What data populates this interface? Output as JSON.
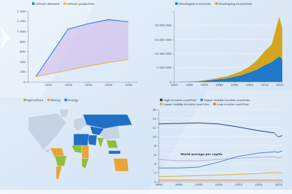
{
  "chart_data": [
    {
      "type": "line",
      "x": [
        2022,
        2030,
        2035,
        2040,
        2045
      ],
      "xlim": [
        2020,
        2047
      ],
      "xticks": [
        2025,
        2030,
        2035,
        2040,
        2045
      ],
      "ylim": [
        0,
        1400
      ],
      "yticks": [
        0,
        200,
        400,
        600,
        800,
        {
          "value": 1000,
          "label": "1 000"
        },
        {
          "value": 1200,
          "label": "1 200"
        },
        {
          "value": 1400,
          "label": "1 400"
        }
      ],
      "legend": "top",
      "grid": false,
      "series": [
        {
          "name": "Lithium demand",
          "color": "#2a7fd4",
          "values": [
            100,
            1040,
            1150,
            1230,
            1190
          ]
        },
        {
          "name": "Lithium production",
          "color": "#e2b93b",
          "values": [
            100,
            230,
            310,
            380,
            440
          ]
        }
      ]
    },
    {
      "type": "area",
      "stacked": true,
      "x": [
        1950,
        1955,
        1960,
        1965,
        1970,
        1975,
        1980,
        1985,
        1990,
        1995,
        2000,
        2005,
        2010,
        2015,
        2020,
        2022
      ],
      "xlim": [
        1950,
        2022
      ],
      "xticks": [
        1950,
        1960,
        1970,
        1980,
        1990,
        2000,
        2010,
        2020
      ],
      "ylim": [
        0,
        25000000
      ],
      "yticks": [
        0,
        {
          "value": 5000000,
          "label": "5 000 000"
        },
        {
          "value": 10000000,
          "label": "10 000 000"
        },
        {
          "value": 15000000,
          "label": "15 000 000"
        },
        {
          "value": 20000000,
          "label": "20 000 000"
        }
      ],
      "legend": "top",
      "grid": true,
      "series": [
        {
          "name": "Developed economies",
          "color": "#1f78c8",
          "values": [
            20000,
            40000,
            80000,
            150000,
            350000,
            600000,
            900000,
            1200000,
            1800000,
            2400000,
            3300000,
            4300000,
            5800000,
            7000000,
            9000000,
            8000000
          ]
        },
        {
          "name": "Developing economies",
          "color": "#d4a51e",
          "values": [
            5000,
            10000,
            30000,
            60000,
            150000,
            300000,
            500000,
            700000,
            1000000,
            1400000,
            2000000,
            3200000,
            4800000,
            6200000,
            14000000,
            11000000
          ]
        }
      ]
    },
    {
      "type": "map",
      "legend": "top",
      "series": [
        {
          "name": "Agriculture",
          "color": "#8fbe3c"
        },
        {
          "name": "Mining",
          "color": "#e8a33a"
        },
        {
          "name": "Energy",
          "color": "#1f6fc4"
        }
      ],
      "regions": [
        "Energy",
        "Energy",
        "Energy",
        "Energy",
        "Agriculture",
        "Mining",
        "Agriculture",
        "Mining",
        "Agriculture",
        "Mining",
        "Agriculture",
        "Agriculture",
        "Mining",
        "Energy"
      ]
    },
    {
      "type": "line",
      "x": [
        1990,
        1995,
        2000,
        2005,
        2010,
        2015,
        2019,
        2020,
        2021
      ],
      "xlim": [
        1990,
        2021
      ],
      "xticks": [
        1990,
        1995,
        2000,
        2005,
        2010,
        2015,
        2020
      ],
      "ylim": [
        0,
        16
      ],
      "yticks": [
        0,
        2,
        4,
        6,
        8,
        10,
        12,
        14,
        16
      ],
      "legend": "top",
      "grid": true,
      "series": [
        {
          "name": "High-income countries",
          "color": "#173f7a",
          "values": [
            12.8,
            12.9,
            13.0,
            12.8,
            12.1,
            11.3,
            10.8,
            9.9,
            10.2
          ]
        },
        {
          "name": "Upper middle-income countries",
          "color": "#3f86d0",
          "values": [
            3.0,
            3.0,
            3.2,
            4.3,
            5.6,
            6.3,
            6.6,
            6.5,
            6.8
          ]
        },
        {
          "name": "Lower middle-income countries",
          "color": "#d8b13a",
          "values": [
            1.1,
            1.2,
            1.3,
            1.4,
            1.6,
            1.8,
            2.0,
            1.9,
            2.0
          ]
        },
        {
          "name": "Low-income countries",
          "color": "#e07a3a",
          "values": [
            0.3,
            0.3,
            0.3,
            0.3,
            0.3,
            0.3,
            0.3,
            0.3,
            0.3
          ]
        }
      ],
      "annotation": {
        "text": "World average per capita",
        "color": "#7b5aa6",
        "line_style": "dotted",
        "values": [
          4.9,
          4.6,
          4.6,
          4.9,
          5.2,
          5.4,
          5.5,
          5.3,
          5.5
        ]
      }
    }
  ]
}
